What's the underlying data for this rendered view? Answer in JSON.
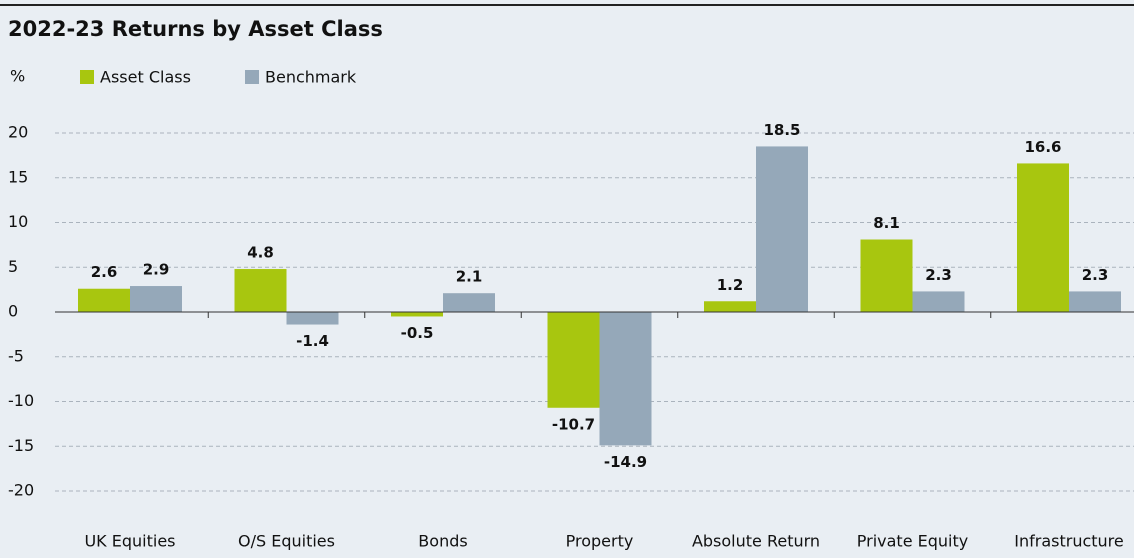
{
  "chart_data": {
    "type": "bar",
    "title": "2022-23 Returns by Asset Class",
    "y_unit": "%",
    "categories": [
      "UK Equities",
      "O/S Equities",
      "Bonds",
      "Property",
      "Absolute Return",
      "Private Equity",
      "Infrastructure"
    ],
    "series": [
      {
        "name": "Asset Class",
        "color": "#a8c60f",
        "values": [
          2.6,
          4.8,
          -0.5,
          -10.7,
          1.2,
          8.1,
          16.6
        ]
      },
      {
        "name": "Benchmark",
        "color": "#95a8b9",
        "values": [
          2.9,
          -1.4,
          2.1,
          -14.9,
          18.5,
          2.3,
          2.3
        ]
      }
    ],
    "ylim": [
      -20,
      20
    ],
    "yticks": [
      -20,
      -15,
      -10,
      -5,
      0,
      5,
      10,
      15,
      20
    ],
    "grid": true
  }
}
